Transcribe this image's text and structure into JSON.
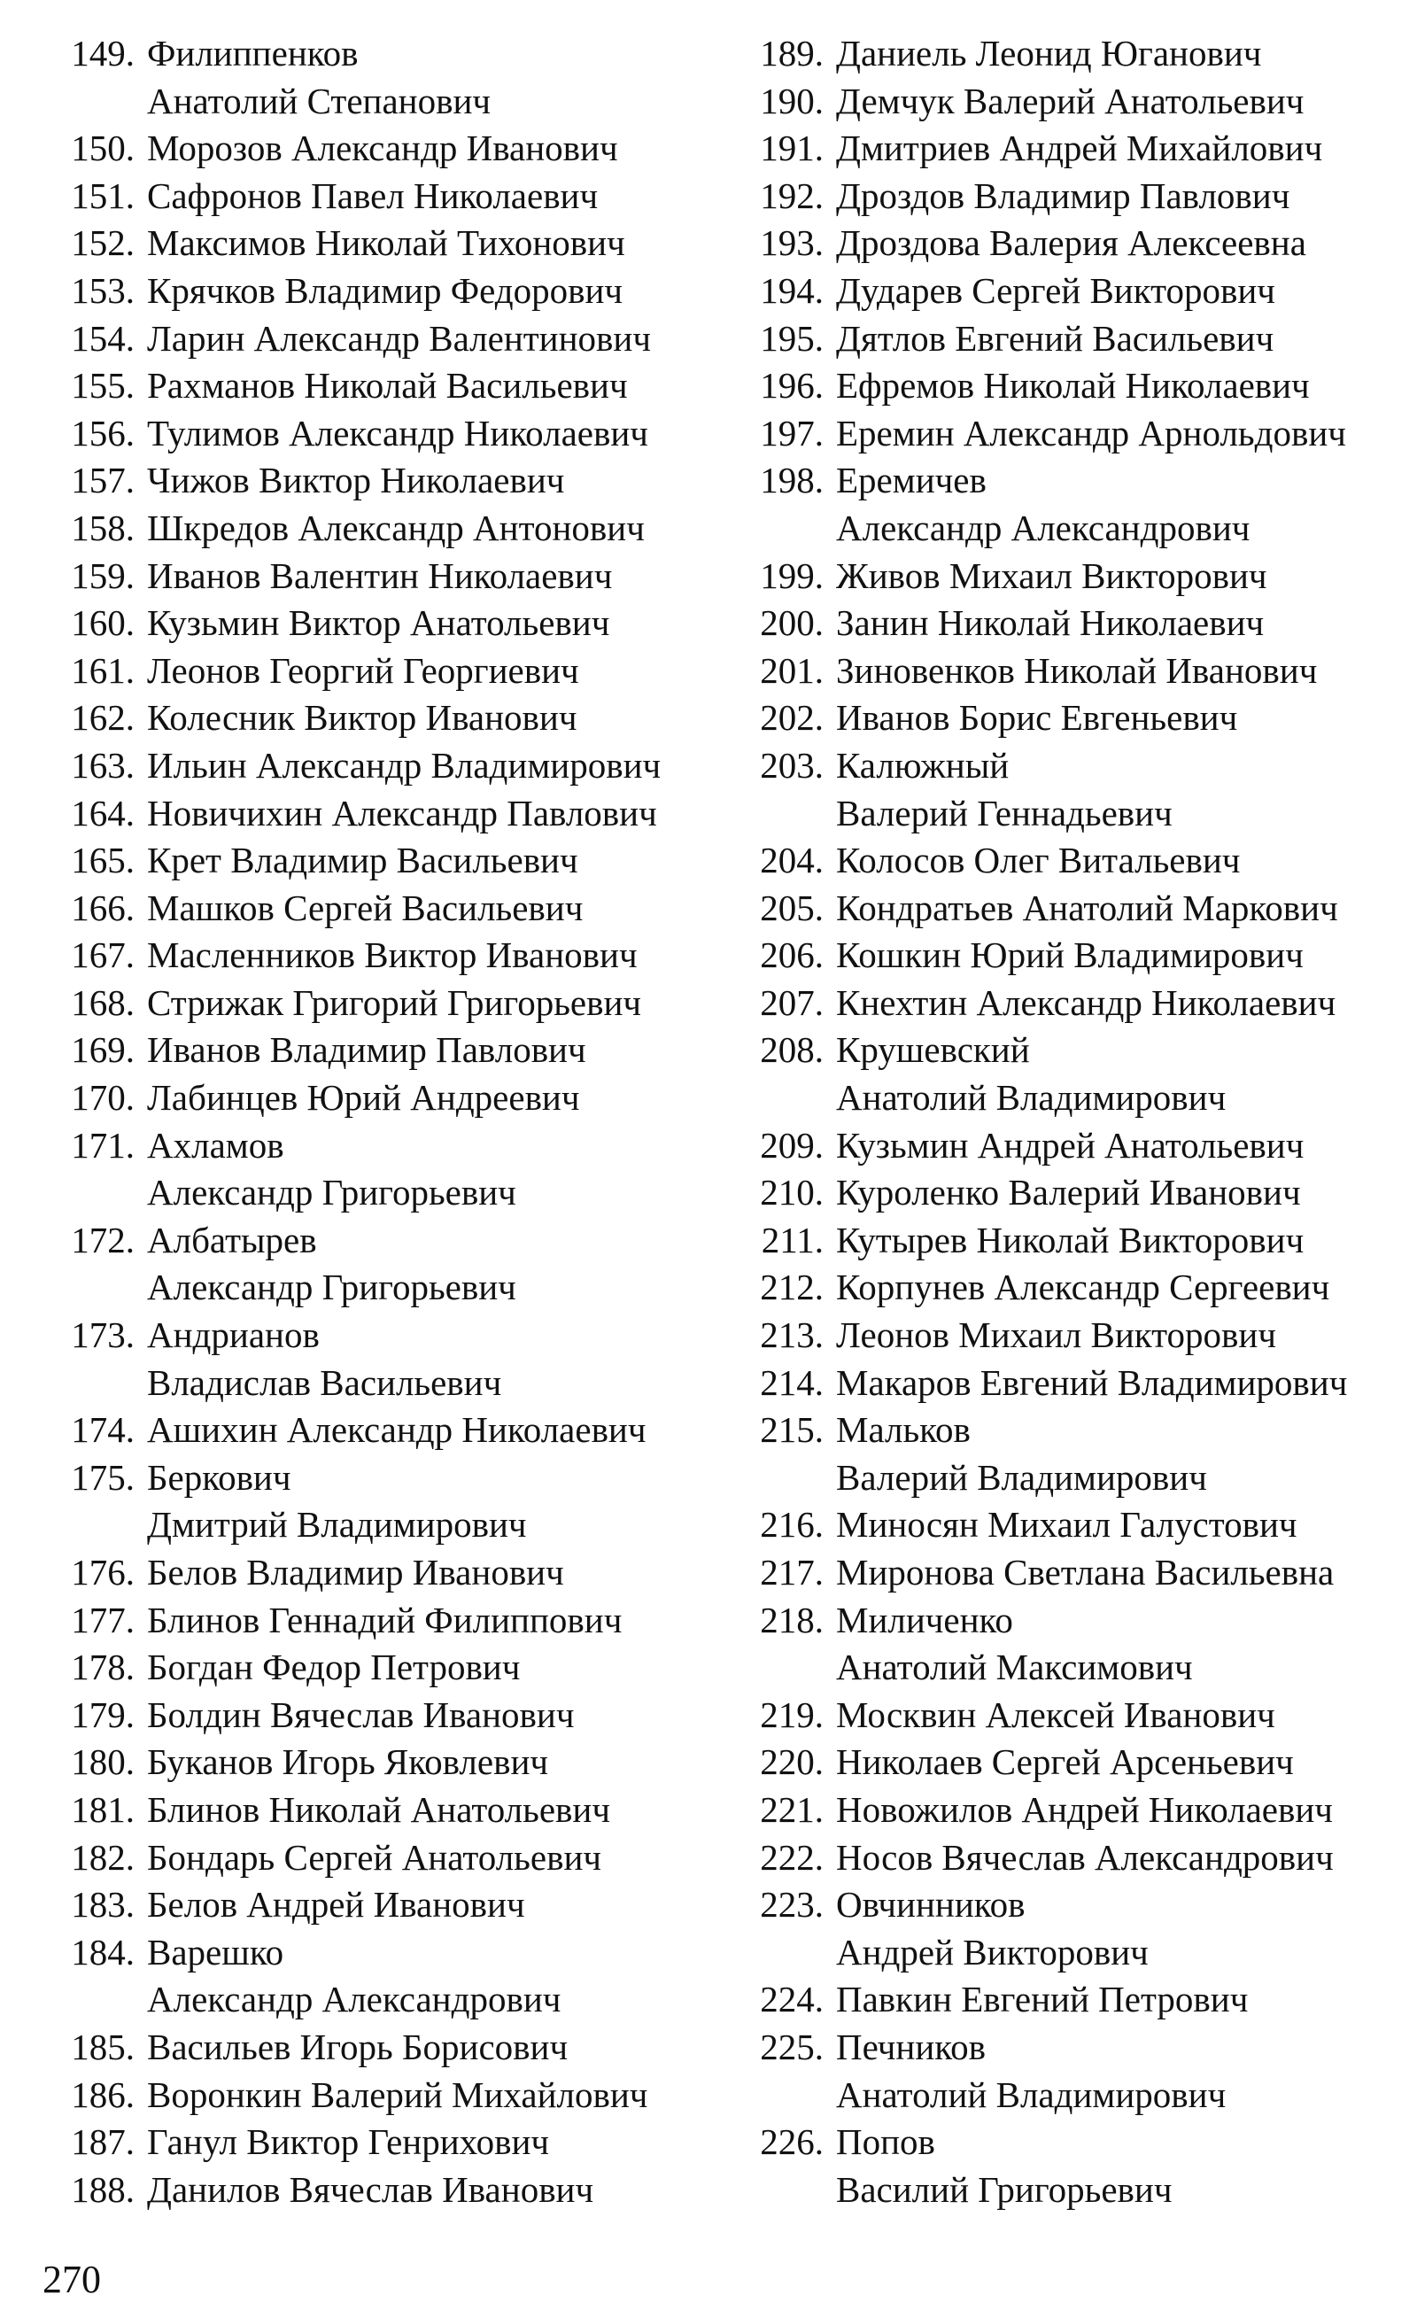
{
  "page_number": "270",
  "left_column": [
    {
      "num": "149.",
      "lines": [
        "Филиппенков",
        "Анатолий Степанович"
      ]
    },
    {
      "num": "150.",
      "lines": [
        "Морозов Александр Иванович"
      ]
    },
    {
      "num": "151.",
      "lines": [
        "Сафронов Павел Николаевич"
      ]
    },
    {
      "num": "152.",
      "lines": [
        "Максимов Николай Тихонович"
      ]
    },
    {
      "num": "153.",
      "lines": [
        "Крячков Владимир Федорович"
      ]
    },
    {
      "num": "154.",
      "lines": [
        "Ларин Александр Валентинович"
      ]
    },
    {
      "num": "155.",
      "lines": [
        "Рахманов Николай Васильевич"
      ]
    },
    {
      "num": "156.",
      "lines": [
        "Тулимов Александр Николаевич"
      ]
    },
    {
      "num": "157.",
      "lines": [
        "Чижов Виктор Николаевич"
      ]
    },
    {
      "num": "158.",
      "lines": [
        "Шкредов Александр Антонович"
      ]
    },
    {
      "num": "159.",
      "lines": [
        "Иванов Валентин Николаевич"
      ]
    },
    {
      "num": "160.",
      "lines": [
        "Кузьмин Виктор Анатольевич"
      ]
    },
    {
      "num": "161.",
      "lines": [
        "Леонов Георгий Георгиевич"
      ]
    },
    {
      "num": "162.",
      "lines": [
        "Колесник Виктор Иванович"
      ]
    },
    {
      "num": "163.",
      "lines": [
        "Ильин Александр Владимирович"
      ]
    },
    {
      "num": "164.",
      "lines": [
        "Новичихин Александр Павлович"
      ]
    },
    {
      "num": "165.",
      "lines": [
        "Крет Владимир Васильевич"
      ]
    },
    {
      "num": "166.",
      "lines": [
        "Машков Сергей Васильевич"
      ]
    },
    {
      "num": "167.",
      "lines": [
        "Масленников Виктор Иванович"
      ]
    },
    {
      "num": "168.",
      "lines": [
        "Стрижак Григорий Григорьевич"
      ]
    },
    {
      "num": "169.",
      "lines": [
        "Иванов Владимир Павлович"
      ]
    },
    {
      "num": "170.",
      "lines": [
        "Лабинцев Юрий Андреевич"
      ]
    },
    {
      "num": "171.",
      "lines": [
        "Ахламов",
        "Александр Григорьевич"
      ]
    },
    {
      "num": "172.",
      "lines": [
        "Албатырев",
        "Александр Григорьевич"
      ]
    },
    {
      "num": "173.",
      "lines": [
        "Андрианов",
        "Владислав Васильевич"
      ]
    },
    {
      "num": "174.",
      "lines": [
        "Ашихин Александр Николаевич"
      ]
    },
    {
      "num": "175.",
      "lines": [
        "Беркович",
        "Дмитрий Владимирович"
      ]
    },
    {
      "num": "176.",
      "lines": [
        "Белов Владимир Иванович"
      ]
    },
    {
      "num": "177.",
      "lines": [
        "Блинов Геннадий Филиппович"
      ]
    },
    {
      "num": "178.",
      "lines": [
        "Богдан Федор Петрович"
      ]
    },
    {
      "num": "179.",
      "lines": [
        "Болдин Вячеслав Иванович"
      ]
    },
    {
      "num": "180.",
      "lines": [
        "Буканов Игорь Яковлевич"
      ]
    },
    {
      "num": "181.",
      "lines": [
        "Блинов Николай Анатольевич"
      ]
    },
    {
      "num": "182.",
      "lines": [
        "Бондарь Сергей Анатольевич"
      ]
    },
    {
      "num": "183.",
      "lines": [
        "Белов Андрей Иванович"
      ]
    },
    {
      "num": "184.",
      "lines": [
        "Варешко",
        "Александр Александрович"
      ]
    },
    {
      "num": "185.",
      "lines": [
        "Васильев Игорь Борисович"
      ]
    },
    {
      "num": "186.",
      "lines": [
        "Воронкин Валерий Михайлович"
      ]
    },
    {
      "num": "187.",
      "lines": [
        "Ганул Виктор Генрихович"
      ]
    },
    {
      "num": "188.",
      "lines": [
        "Данилов Вячеслав Иванович"
      ]
    }
  ],
  "right_column": [
    {
      "num": "189.",
      "lines": [
        "Даниель Леонид Юганович"
      ]
    },
    {
      "num": "190.",
      "lines": [
        "Демчук Валерий Анатольевич"
      ]
    },
    {
      "num": "191.",
      "lines": [
        "Дмитриев Андрей Михайлович"
      ]
    },
    {
      "num": "192.",
      "lines": [
        "Дроздов Владимир Павлович"
      ]
    },
    {
      "num": "193.",
      "lines": [
        "Дроздова Валерия Алексеевна"
      ]
    },
    {
      "num": "194.",
      "lines": [
        "Дударев Сергей Викторович"
      ]
    },
    {
      "num": "195.",
      "lines": [
        "Дятлов Евгений Васильевич"
      ]
    },
    {
      "num": "196.",
      "lines": [
        "Ефремов Николай Николаевич"
      ]
    },
    {
      "num": "197.",
      "lines": [
        "Еремин Александр Арнольдович"
      ]
    },
    {
      "num": "198.",
      "lines": [
        "Еремичев",
        "Александр Александрович"
      ]
    },
    {
      "num": "199.",
      "lines": [
        "Живов Михаил Викторович"
      ]
    },
    {
      "num": "200.",
      "lines": [
        "Занин Николай Николаевич"
      ]
    },
    {
      "num": "201.",
      "lines": [
        "Зиновенков Николай Иванович"
      ]
    },
    {
      "num": "202.",
      "lines": [
        "Иванов Борис Евгеньевич"
      ]
    },
    {
      "num": "203.",
      "lines": [
        "Калюжный",
        "Валерий Геннадьевич"
      ]
    },
    {
      "num": "204.",
      "lines": [
        "Колосов Олег Витальевич"
      ]
    },
    {
      "num": "205.",
      "lines": [
        "Кондратьев Анатолий Маркович"
      ]
    },
    {
      "num": "206.",
      "lines": [
        "Кошкин Юрий Владимирович"
      ]
    },
    {
      "num": "207.",
      "lines": [
        "Кнехтин Александр Николаевич"
      ]
    },
    {
      "num": "208.",
      "lines": [
        "Крушевский",
        "Анатолий Владимирович"
      ]
    },
    {
      "num": "209.",
      "lines": [
        "Кузьмин Андрей Анатольевич"
      ]
    },
    {
      "num": "210.",
      "lines": [
        "Куроленко Валерий Иванович"
      ]
    },
    {
      "num": "211.",
      "lines": [
        "Кутырев Николай Викторович"
      ]
    },
    {
      "num": "212.",
      "lines": [
        "Корпунев Александр Сергеевич"
      ]
    },
    {
      "num": "213.",
      "lines": [
        "Леонов Михаил Викторович"
      ]
    },
    {
      "num": "214.",
      "lines": [
        "Макаров Евгений Владимирович"
      ]
    },
    {
      "num": "215.",
      "lines": [
        "Мальков",
        "Валерий Владимирович"
      ]
    },
    {
      "num": "216.",
      "lines": [
        "Миносян Михаил Галустович"
      ]
    },
    {
      "num": "217.",
      "lines": [
        "Миронова Светлана Васильевна"
      ]
    },
    {
      "num": "218.",
      "lines": [
        "Миличенко",
        "Анатолий Максимович"
      ]
    },
    {
      "num": "219.",
      "lines": [
        "Москвин Алексей Иванович"
      ]
    },
    {
      "num": "220.",
      "lines": [
        "Николаев Сергей Арсеньевич"
      ]
    },
    {
      "num": "221.",
      "lines": [
        "Новожилов Андрей Николаевич"
      ]
    },
    {
      "num": "222.",
      "lines": [
        "Носов Вячеслав Александрович"
      ]
    },
    {
      "num": "223.",
      "lines": [
        "Овчинников",
        "Андрей  Викторович"
      ]
    },
    {
      "num": "224.",
      "lines": [
        "Павкин Евгений Петрович"
      ]
    },
    {
      "num": "225.",
      "lines": [
        "Печников",
        "Анатолий Владимирович"
      ]
    },
    {
      "num": "226.",
      "lines": [
        "Попов",
        "Василий Григорьевич"
      ]
    }
  ]
}
